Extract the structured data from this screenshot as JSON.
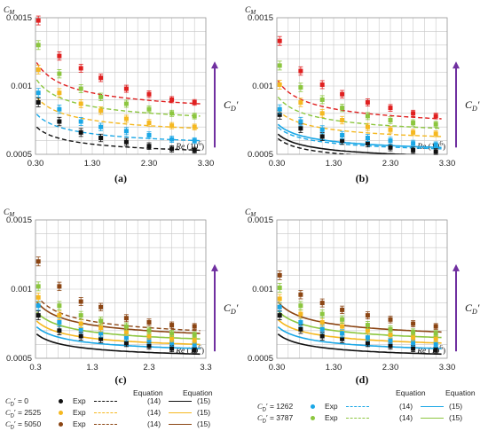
{
  "axes_labels": {
    "y_symbol": "C",
    "y_sub": "M",
    "x_symbol": "Re",
    "x_unit": " (10",
    "x_exp": "6",
    "x_close": ")",
    "cd_symbol": "C",
    "cd_sub": "D",
    "cd_prime": "′"
  },
  "chart_data": [
    {
      "panel": "(a)",
      "type": "scatter",
      "xlabel": "Re (10^6)",
      "ylabel": "CM",
      "xlim": [
        0.3,
        3.3
      ],
      "ylim": [
        0.0005,
        0.0015
      ],
      "x_ticks": [
        "0.30",
        "1.30",
        "2.30",
        "3.30"
      ],
      "y_ticks": [
        "0.0005",
        "0.001",
        "0.0015"
      ],
      "exp_x": [
        0.35,
        0.72,
        1.1,
        1.45,
        1.9,
        2.3,
        2.7,
        3.1
      ],
      "series": [
        {
          "name": "C_D' = 0",
          "color": "#111111",
          "exp": [
            0.00088,
            0.00074,
            0.00066,
            0.00062,
            0.00059,
            0.00056,
            0.00054,
            0.00053
          ],
          "eq14": {
            "a": 0.00053,
            "b": 0.00014
          }
        },
        {
          "name": "C_D' = 1262",
          "color": "#1aa7e6",
          "exp": [
            0.00095,
            0.00083,
            0.00074,
            0.0007,
            0.00067,
            0.00064,
            0.00061,
            0.0006
          ],
          "eq14": {
            "a": 0.0006,
            "b": 0.00016
          }
        },
        {
          "name": "C_D' = 2525",
          "color": "#f5b820",
          "exp": [
            0.00112,
            0.00095,
            0.00087,
            0.00082,
            0.00076,
            0.00073,
            0.00071,
            0.0007
          ],
          "eq14": {
            "a": 0.00069,
            "b": 0.00019
          }
        },
        {
          "name": "C_D' = 3787",
          "color": "#8cc63f",
          "exp": [
            0.0013,
            0.00109,
            0.00098,
            0.00092,
            0.00087,
            0.00083,
            0.0008,
            0.00078
          ],
          "eq14": {
            "a": 0.00078,
            "b": 0.00022
          }
        },
        {
          "name": "C_D' = 5050",
          "color": "#e02020",
          "exp": [
            0.00148,
            0.00122,
            0.00113,
            0.00106,
            0.00098,
            0.00094,
            0.0009,
            0.00088
          ],
          "eq14": {
            "a": 0.00087,
            "b": 0.00025
          }
        }
      ]
    },
    {
      "panel": "(b)",
      "type": "scatter",
      "xlabel": "Re (10^6)",
      "ylabel": "CM",
      "xlim": [
        0.3,
        3.3
      ],
      "ylim": [
        0.0005,
        0.0015
      ],
      "x_ticks": [
        "0.30",
        "1.30",
        "2.30",
        "3.30"
      ],
      "y_ticks": [
        "0.0005",
        "0.001",
        "0.0015"
      ],
      "exp_x": [
        0.35,
        0.72,
        1.1,
        1.45,
        1.9,
        2.3,
        2.7,
        3.1
      ],
      "series": [
        {
          "name": "C_D' = 0",
          "color": "#111111",
          "exp": [
            0.00079,
            0.00069,
            0.00063,
            0.0006,
            0.00058,
            0.00055,
            0.00053,
            0.00052
          ],
          "eq14": {
            "a": 0.00047,
            "b": 0.00012
          },
          "eq15": {
            "a": 0.00049,
            "b": 0.00013
          }
        },
        {
          "name": "C_D' = 1262",
          "color": "#1aa7e6",
          "exp": [
            0.00083,
            0.00074,
            0.00068,
            0.00064,
            0.00062,
            0.0006,
            0.00058,
            0.00057
          ],
          "eq14": {
            "a": 0.00054,
            "b": 0.00013
          },
          "eq15": {
            "a": 0.00055,
            "b": 0.00014
          }
        },
        {
          "name": "C_D' = 2525",
          "color": "#f5b820",
          "exp": [
            0.00101,
            0.00088,
            0.0008,
            0.00075,
            0.0007,
            0.00068,
            0.00066,
            0.00065
          ],
          "eq14": {
            "a": 0.00063,
            "b": 0.00016
          }
        },
        {
          "name": "C_D' = 3787",
          "color": "#8cc63f",
          "exp": [
            0.00115,
            0.00099,
            0.0009,
            0.00084,
            0.00078,
            0.00075,
            0.00073,
            0.00072
          ],
          "eq14": {
            "a": 0.00069,
            "b": 0.00019
          }
        },
        {
          "name": "C_D' = 5050",
          "color": "#e02020",
          "exp": [
            0.00133,
            0.00111,
            0.00101,
            0.00094,
            0.00088,
            0.00084,
            0.0008,
            0.00078
          ],
          "eq14": {
            "a": 0.00076,
            "b": 0.00023
          }
        }
      ]
    },
    {
      "panel": "(c)",
      "type": "scatter",
      "xlabel": "Re (10^6)",
      "ylabel": "CM",
      "xlim": [
        0.3,
        3.3
      ],
      "ylim": [
        0.0005,
        0.0015
      ],
      "x_ticks": [
        "0.3",
        "1.3",
        "2.3",
        "3.3"
      ],
      "y_ticks": [
        "0.0005",
        "0.001",
        "0.0015"
      ],
      "exp_x": [
        0.35,
        0.72,
        1.1,
        1.45,
        1.9,
        2.3,
        2.7,
        3.1
      ],
      "series": [
        {
          "name": "C_D' = 0",
          "color": "#111111",
          "exp": [
            0.00081,
            0.0007,
            0.00066,
            0.00064,
            0.00061,
            0.00059,
            0.00057,
            0.00056
          ],
          "eq15": {
            "a": 0.00053,
            "b": 0.00012
          }
        },
        {
          "name": "C_D' = 1262",
          "color": "#1aa7e6",
          "exp": [
            0.00088,
            0.00076,
            0.00071,
            0.00068,
            0.00065,
            0.00063,
            0.00061,
            0.0006
          ],
          "eq15": {
            "a": 0.00057,
            "b": 0.00013
          }
        },
        {
          "name": "C_D' = 2525",
          "color": "#f5b820",
          "exp": [
            0.00094,
            0.00081,
            0.00075,
            0.00072,
            0.00069,
            0.00066,
            0.00064,
            0.00063
          ],
          "eq15": {
            "a": 0.0006,
            "b": 0.00014
          }
        },
        {
          "name": "C_D' = 3787",
          "color": "#8cc63f",
          "exp": [
            0.00102,
            0.00088,
            0.00081,
            0.00077,
            0.00073,
            0.0007,
            0.00068,
            0.00067
          ],
          "eq15": {
            "a": 0.00064,
            "b": 0.00016
          }
        },
        {
          "name": "C_D' = 5050",
          "color": "#8b4513",
          "exp": [
            0.0012,
            0.00102,
            0.00091,
            0.00087,
            0.00079,
            0.00076,
            0.00074,
            0.00073
          ],
          "eq14": {
            "a": 0.0007,
            "b": 0.00021
          },
          "eq15": {
            "a": 0.00068,
            "b": 0.00019
          }
        }
      ]
    },
    {
      "panel": "(d)",
      "type": "scatter",
      "xlabel": "Re (10^6)",
      "ylabel": "CM",
      "xlim": [
        0.3,
        3.3
      ],
      "ylim": [
        0.0005,
        0.0015
      ],
      "x_ticks": [
        "0.30",
        "1.30",
        "2.30",
        "3.30"
      ],
      "y_ticks": [
        "0.0005",
        "0.001",
        "0.0015"
      ],
      "exp_x": [
        0.35,
        0.72,
        1.1,
        1.45,
        1.9,
        2.3,
        2.7,
        3.1
      ],
      "series": [
        {
          "name": "C_D' = 0",
          "color": "#111111",
          "exp": [
            0.00081,
            0.00071,
            0.00066,
            0.00064,
            0.00061,
            0.00059,
            0.00057,
            0.00056
          ],
          "eq15": {
            "a": 0.00053,
            "b": 0.00012
          }
        },
        {
          "name": "C_D' = 1262",
          "color": "#1aa7e6",
          "exp": [
            0.00087,
            0.00076,
            0.00071,
            0.00068,
            0.00065,
            0.00063,
            0.00061,
            0.0006
          ],
          "eq15": {
            "a": 0.00057,
            "b": 0.00013
          }
        },
        {
          "name": "C_D' = 2525",
          "color": "#f5b820",
          "exp": [
            0.00093,
            0.00082,
            0.00076,
            0.00073,
            0.0007,
            0.00067,
            0.00065,
            0.00064
          ],
          "eq15": {
            "a": 0.00061,
            "b": 0.00014
          }
        },
        {
          "name": "C_D' = 3787",
          "color": "#8cc63f",
          "exp": [
            0.00101,
            0.00088,
            0.00082,
            0.00078,
            0.00074,
            0.00071,
            0.00069,
            0.00068
          ],
          "eq15": {
            "a": 0.00065,
            "b": 0.00016
          }
        },
        {
          "name": "C_D' = 5050",
          "color": "#8b4513",
          "exp": [
            0.0011,
            0.00096,
            0.0009,
            0.00085,
            0.00081,
            0.00078,
            0.00075,
            0.00073
          ],
          "eq15": {
            "a": 0.00069,
            "b": 0.00018
          }
        }
      ]
    }
  ],
  "legend": {
    "headers": {
      "eq_a": "Equation",
      "eq_b": "Equation"
    },
    "left": [
      {
        "cd": "C",
        "sub": "D",
        "text": "′ = 0",
        "color": "#111111",
        "exp": "Exp",
        "eq14": "(14)",
        "eq15": "(15)"
      },
      {
        "cd": "C",
        "sub": "D",
        "text": "′ = 2525",
        "color": "#f5b820",
        "exp": "Exp",
        "eq14": "(14)",
        "eq15": "(15)"
      },
      {
        "cd": "C",
        "sub": "D",
        "text": "′ = 5050",
        "color": "#8b4513",
        "exp": "Exp",
        "eq14": "(14)",
        "eq15": "(15)"
      }
    ],
    "right": [
      {
        "cd": "C",
        "sub": "D",
        "text": "′ = 1262",
        "color": "#1aa7e6",
        "exp": "Exp",
        "eq14": "(14)",
        "eq15": "(15)"
      },
      {
        "cd": "C",
        "sub": "D",
        "text": "′ = 3787",
        "color": "#8cc63f",
        "exp": "Exp",
        "eq14": "(14)",
        "eq15": "(15)"
      }
    ]
  },
  "colors": {
    "arrow": "#7030a0",
    "grid": "#c8c8c8",
    "axis": "#222222"
  }
}
